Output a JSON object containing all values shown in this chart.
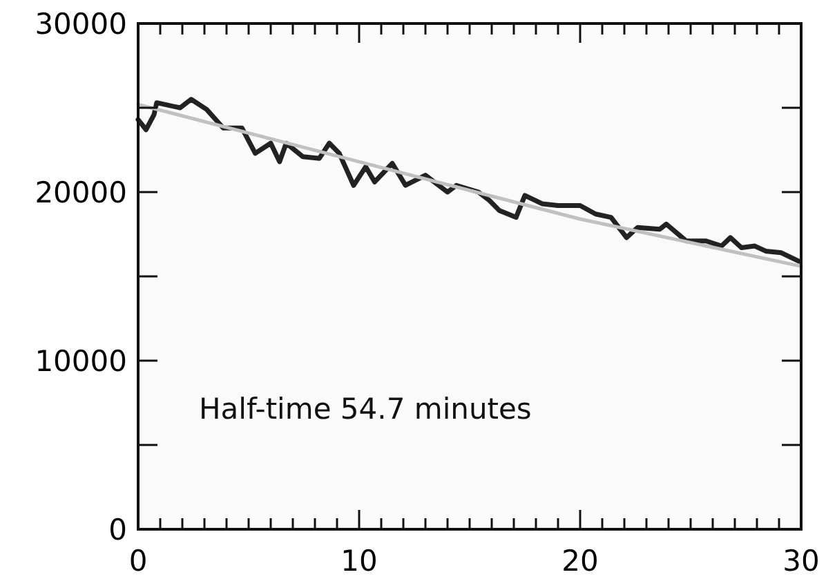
{
  "chart_data": {
    "type": "line",
    "x": [
      0,
      0.36,
      0.72,
      0.84,
      1.9,
      2.4,
      3.1,
      3.85,
      4.7,
      5.3,
      6.0,
      6.4,
      6.7,
      7.45,
      8.2,
      8.65,
      9.1,
      9.75,
      10.3,
      10.7,
      11.5,
      12.1,
      13.0,
      14.0,
      14.4,
      15.4,
      15.9,
      16.35,
      17.1,
      17.5,
      18.3,
      19.0,
      20.0,
      20.7,
      21.4,
      22.1,
      22.6,
      23.6,
      23.9,
      24.8,
      25.7,
      26.4,
      26.8,
      27.3,
      27.9,
      28.4,
      29.1,
      29.9
    ],
    "series": [
      {
        "color": "#222222",
        "values": [
          24300,
          23700,
          24600,
          25300,
          25000,
          25500,
          24900,
          23800,
          23800,
          22300,
          22900,
          21800,
          22900,
          22100,
          22000,
          22900,
          22300,
          20400,
          21500,
          20600,
          21700,
          20400,
          21000,
          20000,
          20400,
          20000,
          19500,
          18900,
          18500,
          19800,
          19300,
          19200,
          19200,
          18700,
          18500,
          17300,
          17900,
          17800,
          18100,
          17100,
          17100,
          16800,
          17300,
          16700,
          16800,
          16500,
          16400,
          15900
        ]
      },
      {
        "color": "#c0c0c0",
        "x": [
          0,
          10,
          20,
          30
        ],
        "values": [
          25200,
          21800,
          18400,
          15600
        ]
      }
    ],
    "xlim": [
      0,
      30
    ],
    "xticks": [
      0,
      {
        "value": 1,
        "label": null
      },
      {
        "value": 2,
        "label": null
      },
      {
        "value": 3,
        "label": null
      },
      {
        "value": 4,
        "label": null
      },
      {
        "value": 5,
        "label": null
      },
      {
        "value": 6,
        "label": null
      },
      {
        "value": 7,
        "label": null
      },
      {
        "value": 8,
        "label": null
      },
      {
        "value": 9,
        "label": null
      },
      10,
      {
        "value": 11,
        "label": null
      },
      {
        "value": 12,
        "label": null
      },
      {
        "value": 13,
        "label": null
      },
      {
        "value": 14,
        "label": null
      },
      {
        "value": 15,
        "label": null
      },
      {
        "value": 16,
        "label": null
      },
      {
        "value": 17,
        "label": null
      },
      {
        "value": 18,
        "label": null
      },
      {
        "value": 19,
        "label": null
      },
      20,
      {
        "value": 21,
        "label": null
      },
      {
        "value": 22,
        "label": null
      },
      {
        "value": 23,
        "label": null
      },
      {
        "value": 24,
        "label": null
      },
      {
        "value": 25,
        "label": null
      },
      {
        "value": 26,
        "label": null
      },
      {
        "value": 27,
        "label": null
      },
      {
        "value": 28,
        "label": null
      },
      {
        "value": 29,
        "label": null
      },
      30
    ],
    "ylim": [
      0,
      30000
    ],
    "yticks": [
      0,
      {
        "value": 5000,
        "label": null
      },
      10000,
      {
        "value": 15000,
        "label": null
      },
      20000,
      {
        "value": 25000,
        "label": null
      },
      30000
    ],
    "annotations": [
      "Half-time 54.7 minutes"
    ],
    "grid": false,
    "marker": "none",
    "line_style": "solid"
  }
}
